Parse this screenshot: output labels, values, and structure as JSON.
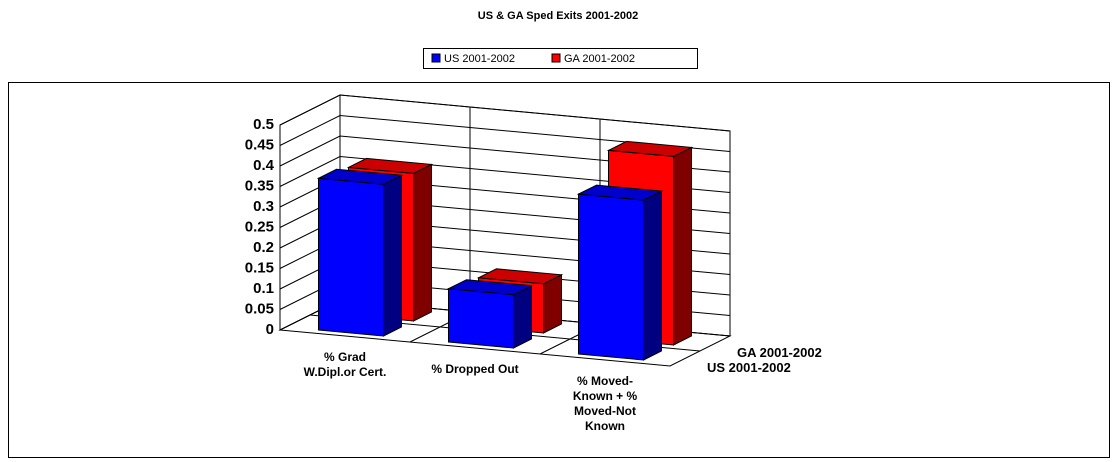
{
  "chart_data": {
    "type": "bar3d",
    "title": "US & GA Sped Exits 2001-2002",
    "categories": [
      "% Grad W.Dipl.or Cert.",
      "% Dropped Out",
      "% Moved-Known + % Moved-Not Known"
    ],
    "series": [
      {
        "name": "US 2001-2002",
        "color": "#0000ff",
        "values": [
          0.37,
          0.13,
          0.39
        ]
      },
      {
        "name": "GA 2001-2002",
        "color": "#ff0000",
        "values": [
          0.36,
          0.12,
          0.46
        ]
      }
    ],
    "ylim": [
      0,
      0.5
    ],
    "yticks": [
      0,
      0.05,
      0.1,
      0.15,
      0.2,
      0.25,
      0.3,
      0.35,
      0.4,
      0.45,
      0.5
    ],
    "grid": true,
    "legend": "top"
  }
}
